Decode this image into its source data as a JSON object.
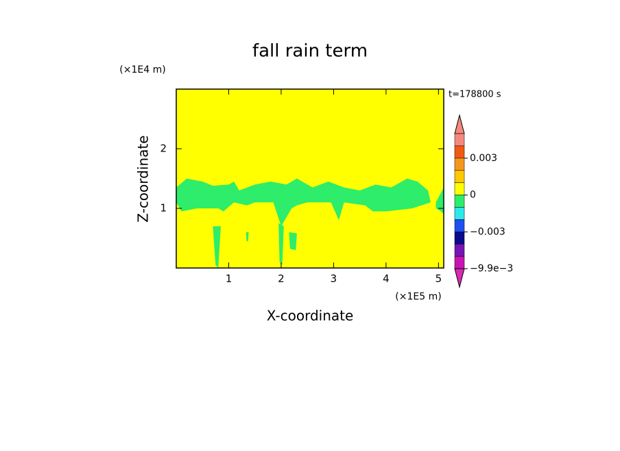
{
  "chart_data": {
    "type": "contour",
    "title": "fall rain term",
    "x_label": "X-coordinate",
    "y_label": "Z-coordinate",
    "x_unit": "(×1E5 m)",
    "y_unit": "(×1E4 m)",
    "time_label": "t=178800 s",
    "xlim": [
      0,
      5.1
    ],
    "ylim": [
      0,
      3
    ],
    "xticks": [
      1,
      2,
      3,
      4,
      5
    ],
    "yticks": [
      1,
      2
    ],
    "background_color": "#ffff00",
    "regions": [
      {
        "color": "#2ded6a",
        "x": [
          0,
          0.2,
          0.5,
          0.7,
          1.0,
          1.1,
          1.2,
          1.5,
          1.8,
          2.1,
          2.3,
          2.6,
          2.9,
          3.2,
          3.5,
          3.8,
          4.1,
          4.4,
          4.6,
          4.8,
          4.85,
          4.5,
          4.0,
          3.75,
          3.6,
          3.2,
          3.1,
          2.95,
          2.5,
          2.3,
          2.2,
          2.0,
          1.85,
          1.5,
          1.35,
          1.1,
          0.9,
          0.8,
          0.4,
          0.1,
          0
        ],
        "z": [
          1.35,
          1.5,
          1.45,
          1.38,
          1.4,
          1.45,
          1.3,
          1.4,
          1.45,
          1.4,
          1.5,
          1.35,
          1.45,
          1.35,
          1.3,
          1.4,
          1.35,
          1.5,
          1.45,
          1.3,
          1.1,
          1.0,
          0.95,
          0.95,
          1.05,
          1.1,
          0.8,
          1.1,
          1.1,
          1.05,
          1.0,
          0.7,
          1.1,
          1.1,
          1.05,
          1.1,
          0.95,
          1.0,
          1.0,
          0.95,
          1.1
        ]
      },
      {
        "color": "#2ded6a",
        "x": [
          4.95,
          5.1,
          5.1,
          5.05,
          4.95
        ],
        "z": [
          1.1,
          1.35,
          0.9,
          0.95,
          1.0
        ]
      },
      {
        "color": "#2ded6a",
        "x": [
          0.7,
          0.85,
          0.8,
          0.75,
          0.72
        ],
        "z": [
          0.7,
          0.7,
          0.0,
          0.05,
          0.4
        ]
      },
      {
        "color": "#2ded6a",
        "x": [
          1.95,
          2.05,
          2.02,
          1.97
        ],
        "z": [
          0.75,
          0.7,
          0.05,
          0.1
        ]
      },
      {
        "color": "#2ded6a",
        "x": [
          2.15,
          2.3,
          2.28,
          2.17
        ],
        "z": [
          0.6,
          0.58,
          0.3,
          0.32
        ]
      },
      {
        "color": "#2ded6a",
        "x": [
          1.33,
          1.38,
          1.37,
          1.34
        ],
        "z": [
          0.6,
          0.6,
          0.45,
          0.45
        ]
      }
    ],
    "colorbar": {
      "colors": [
        "#f5887e",
        "#f5887e",
        "#f05a14",
        "#f5961e",
        "#ffc800",
        "#ffff00",
        "#2ded6a",
        "#2ee8e8",
        "#1e50f0",
        "#0a0a8c",
        "#7814b4",
        "#c814b4",
        "#dc28b4"
      ],
      "levels": [
        0.006,
        0.0045,
        0.003,
        0.002,
        0.001,
        0,
        -0.001,
        -0.002,
        -0.003,
        -0.0045,
        -0.007,
        -0.0099
      ],
      "labels": [
        0.003,
        0,
        {
          "value": -0.003,
          "label": "−0.003"
        },
        {
          "value": -0.0099,
          "label": "−9.9e−3"
        }
      ]
    }
  }
}
